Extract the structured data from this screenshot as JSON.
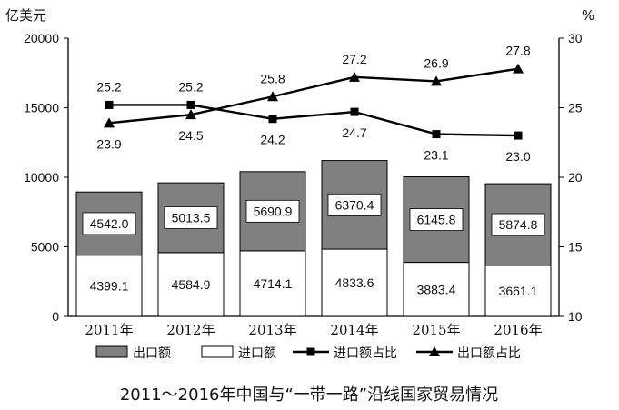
{
  "chart_data": {
    "type": "bar",
    "title": "2011～2016年中国与“一带一路”沿线国家贸易情况",
    "y_left_unit": "亿美元",
    "y_right_unit": "%",
    "y_left_lim": [
      0,
      20000
    ],
    "y_left_ticks": [
      "0",
      "5000",
      "10000",
      "15000",
      "20000"
    ],
    "y_right_lim": [
      10,
      30
    ],
    "y_right_ticks": [
      "10",
      "15",
      "20",
      "25",
      "30"
    ],
    "categories": [
      "2011年",
      "2012年",
      "2013年",
      "2014年",
      "2015年",
      "2016年"
    ],
    "bar_series": [
      {
        "name": "进口额",
        "color": "#ffffff",
        "values": [
          4399.1,
          4584.9,
          4714.1,
          4833.6,
          3883.4,
          3661.1
        ],
        "labels": [
          "4399.1",
          "4584.9",
          "4714.1",
          "4833.6",
          "3883.4",
          "3661.1"
        ]
      },
      {
        "name": "出口额",
        "color": "#808080",
        "values": [
          4542.0,
          5013.5,
          5690.9,
          6370.4,
          6145.8,
          5874.8
        ],
        "labels": [
          "4542.0",
          "5013.5",
          "5690.9",
          "6370.4",
          "6145.8",
          "5874.8"
        ]
      }
    ],
    "line_series": [
      {
        "name": "进口额占比",
        "marker": "square",
        "values": [
          25.2,
          25.2,
          24.2,
          24.7,
          23.1,
          23.0
        ],
        "labels": [
          "25.2",
          "25.2",
          "24.2",
          "24.7",
          "23.1",
          "23.0"
        ]
      },
      {
        "name": "出口额占比",
        "marker": "triangle",
        "values": [
          23.9,
          24.5,
          25.8,
          27.2,
          26.9,
          27.8
        ],
        "labels": [
          "23.9",
          "24.5",
          "25.8",
          "27.2",
          "26.9",
          "27.8"
        ]
      }
    ],
    "legend": [
      "出口额",
      "进口额",
      "进口额占比",
      "出口额占比"
    ],
    "legend_position": "bottom"
  }
}
